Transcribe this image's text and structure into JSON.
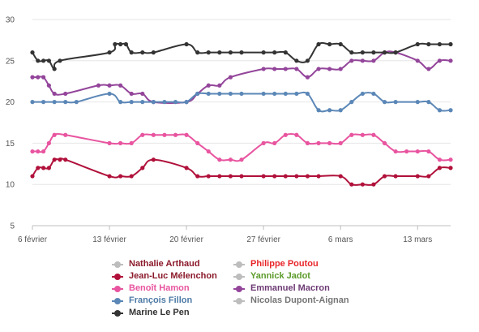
{
  "chart_data": {
    "type": "line",
    "y_ticks": [
      5,
      10,
      15,
      20,
      25,
      30
    ],
    "ylim": [
      5,
      30
    ],
    "x_ticks": [
      {
        "label": "6 février",
        "day": 0
      },
      {
        "label": "13 février",
        "day": 7
      },
      {
        "label": "20 février",
        "day": 14
      },
      {
        "label": "27 février",
        "day": 21
      },
      {
        "label": "6 mars",
        "day": 28
      },
      {
        "label": "13 mars",
        "day": 35
      }
    ],
    "grid": true,
    "legend_position": "bottom",
    "series": [
      {
        "name": "Nathalie Arthaud",
        "color": "#bdbdbd",
        "points": []
      },
      {
        "name": "Philippe Poutou",
        "color": "#e8262a",
        "label_color": "#e8262a",
        "points": []
      },
      {
        "name": "Jean-Luc Mélenchon",
        "color": "#b0103a",
        "label_color": "#8b1a2b",
        "points": [
          [
            0,
            11
          ],
          [
            0.5,
            12
          ],
          [
            1,
            12
          ],
          [
            1.5,
            12
          ],
          [
            2,
            13
          ],
          [
            2.5,
            13
          ],
          [
            3,
            13
          ],
          [
            7,
            11
          ],
          [
            8,
            11
          ],
          [
            9,
            11
          ],
          [
            10,
            12
          ],
          [
            11,
            13
          ],
          [
            14,
            12
          ],
          [
            15,
            11
          ],
          [
            16,
            11
          ],
          [
            17,
            11
          ],
          [
            18,
            11
          ],
          [
            19,
            11
          ],
          [
            21,
            11
          ],
          [
            22,
            11
          ],
          [
            23,
            11
          ],
          [
            24,
            11
          ],
          [
            25,
            11
          ],
          [
            26,
            11
          ],
          [
            28,
            11
          ],
          [
            29,
            10
          ],
          [
            30,
            10
          ],
          [
            31,
            10
          ],
          [
            32,
            11
          ],
          [
            33,
            11
          ],
          [
            35,
            11
          ],
          [
            36,
            11
          ],
          [
            37,
            12
          ],
          [
            38,
            12
          ]
        ]
      },
      {
        "name": "Yannick Jadot",
        "color": "#bdbdbd",
        "label_color": "#5b9b2a",
        "points": []
      },
      {
        "name": "Benoît Hamon",
        "color": "#e8549f",
        "label_color": "#e8549f",
        "points": [
          [
            0,
            14
          ],
          [
            0.5,
            14
          ],
          [
            1,
            14
          ],
          [
            1.5,
            15
          ],
          [
            2,
            16
          ],
          [
            3,
            16
          ],
          [
            7,
            15
          ],
          [
            8,
            15
          ],
          [
            9,
            15
          ],
          [
            10,
            16
          ],
          [
            11,
            16
          ],
          [
            12,
            16
          ],
          [
            13,
            16
          ],
          [
            14,
            16
          ],
          [
            15,
            15
          ],
          [
            16,
            14
          ],
          [
            17,
            13
          ],
          [
            18,
            13
          ],
          [
            19,
            13
          ],
          [
            21,
            15
          ],
          [
            22,
            15
          ],
          [
            23,
            16
          ],
          [
            24,
            16
          ],
          [
            25,
            15
          ],
          [
            26,
            15
          ],
          [
            27,
            15
          ],
          [
            28,
            15
          ],
          [
            29,
            16
          ],
          [
            30,
            16
          ],
          [
            31,
            16
          ],
          [
            32,
            15
          ],
          [
            33,
            14
          ],
          [
            34,
            14
          ],
          [
            35,
            14
          ],
          [
            36,
            14
          ],
          [
            37,
            13
          ],
          [
            38,
            13
          ]
        ]
      },
      {
        "name": "Emmanuel Macron",
        "color": "#93459a",
        "label_color": "#6d3a74",
        "points": [
          [
            0,
            23
          ],
          [
            0.5,
            23
          ],
          [
            1,
            23
          ],
          [
            1.5,
            22
          ],
          [
            2,
            21
          ],
          [
            3,
            21
          ],
          [
            6,
            22
          ],
          [
            7,
            22
          ],
          [
            8,
            22
          ],
          [
            9,
            21
          ],
          [
            10,
            21
          ],
          [
            11,
            20
          ],
          [
            14,
            20
          ],
          [
            15,
            21
          ],
          [
            16,
            22
          ],
          [
            17,
            22
          ],
          [
            18,
            23
          ],
          [
            21,
            24
          ],
          [
            22,
            24
          ],
          [
            23,
            24
          ],
          [
            24,
            24
          ],
          [
            25,
            23
          ],
          [
            26,
            24
          ],
          [
            27,
            24
          ],
          [
            28,
            24
          ],
          [
            29,
            25
          ],
          [
            30,
            25
          ],
          [
            31,
            25
          ],
          [
            32,
            26
          ],
          [
            33,
            26
          ],
          [
            35,
            25
          ],
          [
            36,
            24
          ],
          [
            37,
            25
          ],
          [
            38,
            25
          ]
        ]
      },
      {
        "name": "François Fillon",
        "color": "#5b87b7",
        "label_color": "#4d7aa6",
        "points": [
          [
            0,
            20
          ],
          [
            1,
            20
          ],
          [
            2,
            20
          ],
          [
            3,
            20
          ],
          [
            4,
            20
          ],
          [
            7,
            21
          ],
          [
            8,
            20
          ],
          [
            9,
            20
          ],
          [
            10,
            20
          ],
          [
            11,
            20
          ],
          [
            12,
            20
          ],
          [
            13,
            20
          ],
          [
            14,
            20
          ],
          [
            15,
            21
          ],
          [
            16,
            21
          ],
          [
            17,
            21
          ],
          [
            18,
            21
          ],
          [
            19,
            21
          ],
          [
            21,
            21
          ],
          [
            22,
            21
          ],
          [
            23,
            21
          ],
          [
            24,
            21
          ],
          [
            25,
            21
          ],
          [
            26,
            19
          ],
          [
            27,
            19
          ],
          [
            28,
            19
          ],
          [
            29,
            20
          ],
          [
            30,
            21
          ],
          [
            31,
            21
          ],
          [
            32,
            20
          ],
          [
            33,
            20
          ],
          [
            35,
            20
          ],
          [
            36,
            20
          ],
          [
            37,
            19
          ],
          [
            38,
            19
          ]
        ]
      },
      {
        "name": "Nicolas Dupont-Aignan",
        "color": "#bdbdbd",
        "label_color": "#757575",
        "points": []
      },
      {
        "name": "Marine Le Pen",
        "color": "#333333",
        "label_color": "#333333",
        "points": [
          [
            0,
            26
          ],
          [
            0.5,
            25
          ],
          [
            1,
            25
          ],
          [
            1.5,
            25
          ],
          [
            2,
            24
          ],
          [
            2.5,
            25
          ],
          [
            7,
            26
          ],
          [
            7.5,
            27
          ],
          [
            8,
            27
          ],
          [
            8.5,
            27
          ],
          [
            9,
            26
          ],
          [
            10,
            26
          ],
          [
            11,
            26
          ],
          [
            14,
            27
          ],
          [
            15,
            26
          ],
          [
            16,
            26
          ],
          [
            17,
            26
          ],
          [
            18,
            26
          ],
          [
            19,
            26
          ],
          [
            21,
            26
          ],
          [
            22,
            26
          ],
          [
            23,
            26
          ],
          [
            24,
            25
          ],
          [
            25,
            25
          ],
          [
            26,
            27
          ],
          [
            27,
            27
          ],
          [
            28,
            27
          ],
          [
            29,
            26
          ],
          [
            30,
            26
          ],
          [
            31,
            26
          ],
          [
            32,
            26
          ],
          [
            33,
            26
          ],
          [
            35,
            27
          ],
          [
            36,
            27
          ],
          [
            37,
            27
          ],
          [
            38,
            27
          ]
        ]
      }
    ]
  },
  "legend": [
    {
      "label": "Nathalie Arthaud",
      "color": "#bdbdbd",
      "text_color": "#8b1a2b",
      "col": 0,
      "row": 0
    },
    {
      "label": "Philippe Poutou",
      "color": "#bdbdbd",
      "text_color": "#e8262a",
      "col": 1,
      "row": 0
    },
    {
      "label": "Jean-Luc Mélenchon",
      "color": "#b0103a",
      "text_color": "#8b1a2b",
      "col": 0,
      "row": 1
    },
    {
      "label": "Yannick Jadot",
      "color": "#bdbdbd",
      "text_color": "#5b9b2a",
      "col": 1,
      "row": 1
    },
    {
      "label": "Benoît Hamon",
      "color": "#e8549f",
      "text_color": "#e8549f",
      "col": 0,
      "row": 2
    },
    {
      "label": "Emmanuel Macron",
      "color": "#93459a",
      "text_color": "#6d3a74",
      "col": 1,
      "row": 2
    },
    {
      "label": "François Fillon",
      "color": "#5b87b7",
      "text_color": "#4d7aa6",
      "col": 0,
      "row": 3
    },
    {
      "label": "Nicolas Dupont-Aignan",
      "color": "#bdbdbd",
      "text_color": "#757575",
      "col": 1,
      "row": 3
    },
    {
      "label": "Marine Le Pen",
      "color": "#333333",
      "text_color": "#333333",
      "col": 0,
      "row": 4
    }
  ]
}
